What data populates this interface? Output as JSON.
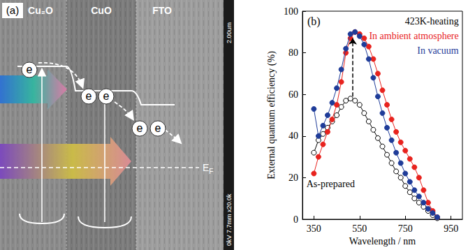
{
  "diagram": {
    "panel_label": "(a)",
    "layers": [
      "Cu₂O",
      "CuO",
      "FTO"
    ],
    "electrons": [
      "e",
      "e",
      "e",
      "e",
      "e"
    ],
    "fermi_label": "E",
    "fermi_subscript": "F",
    "scale_text": "2.00um",
    "info_text": "0kV 7.7mm x20.0k"
  },
  "chart_data": {
    "type": "line",
    "panel_label": "(b)",
    "x_label": "Wavelength / nm",
    "y_label": "External quantum efficiency (%)",
    "x": [
      350,
      370,
      390,
      410,
      430,
      450,
      470,
      490,
      510,
      530,
      550,
      570,
      590,
      610,
      630,
      650,
      670,
      690,
      710,
      730,
      750,
      770,
      790,
      810,
      830,
      850,
      870,
      890
    ],
    "series": [
      {
        "name": "As-prepared",
        "color": "#000000",
        "marker": "open_circle",
        "line_style": "solid",
        "label_at": [
          535,
          17
        ],
        "values": [
          32,
          38,
          41,
          44,
          47,
          50,
          54,
          57,
          58,
          57,
          55,
          51,
          47,
          43,
          39,
          35,
          31,
          27,
          23,
          20,
          16,
          13,
          10,
          8,
          6,
          4,
          2,
          0.5
        ]
      },
      {
        "name": "In ambient atmosphere",
        "color": "#e8231e",
        "marker": "filled_circle",
        "line_style": "solid",
        "label_at": [
          990,
          88
        ],
        "values": [
          22,
          30,
          36,
          42,
          48,
          55,
          66,
          80,
          87,
          90,
          89,
          87,
          83,
          77,
          70,
          62,
          55,
          48,
          42,
          37,
          33,
          29,
          25,
          20,
          14,
          8,
          4,
          1
        ]
      },
      {
        "name": "In vacuum",
        "color": "#1f3c99",
        "marker": "filled_circle",
        "line_style": "solid",
        "label_at": [
          990,
          81
        ],
        "values": [
          53,
          40,
          45,
          50,
          56,
          63,
          72,
          82,
          89,
          90,
          88,
          84,
          77,
          68,
          59,
          51,
          44,
          38,
          32,
          27,
          22,
          18,
          14,
          11,
          8,
          5,
          3,
          1
        ]
      }
    ],
    "annotations": [
      {
        "text": "423K-heating",
        "x": 990,
        "y": 95,
        "color": "#000000"
      }
    ],
    "arrow": {
      "x": 520,
      "y_from": 59,
      "y_to": 87
    },
    "xlim": [
      300,
      1000
    ],
    "xticks": [
      350,
      550,
      750,
      950
    ],
    "ylim": [
      0,
      100
    ],
    "yticks": [
      0,
      20,
      40,
      60,
      80,
      100
    ],
    "grid": false
  }
}
